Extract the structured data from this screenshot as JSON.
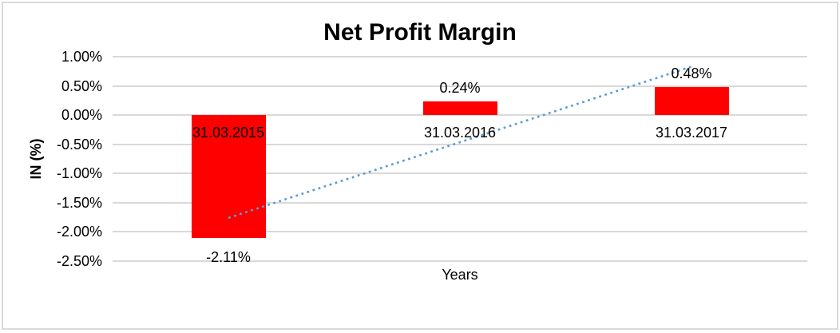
{
  "frame": {
    "background_color": "#FFFFFF",
    "border_color": "#D9D9D9"
  },
  "chart_data": {
    "type": "bar",
    "title": "Net Profit Margin",
    "xlabel": "Years",
    "ylabel": "IN (%)",
    "categories": [
      "31.03.2015",
      "31.03.2016",
      "31.03.2017"
    ],
    "values": [
      -2.11,
      0.24,
      0.48
    ],
    "data_labels": [
      "-2.11%",
      "0.24%",
      "0.48%"
    ],
    "y_ticks": [
      {
        "value": 1.0,
        "label": "1.00%"
      },
      {
        "value": 0.5,
        "label": "0.50%"
      },
      {
        "value": 0.0,
        "label": "0.00%"
      },
      {
        "value": -0.5,
        "label": "-0.50%"
      },
      {
        "value": -1.0,
        "label": "-1.00%"
      },
      {
        "value": -1.5,
        "label": "-1.50%"
      },
      {
        "value": -2.0,
        "label": "-2.00%"
      },
      {
        "value": -2.5,
        "label": "-2.50%"
      }
    ],
    "ylim": [
      -2.5,
      1.0
    ],
    "grid": true,
    "gridline_color": "#D9D9D9",
    "bar_color": "#FF0000",
    "legend": "none",
    "trendline": {
      "type": "linear",
      "style": "dotted",
      "color": "#5B9BD5",
      "x_category_index": [
        0,
        2
      ],
      "y_values": [
        -1.76,
        0.83
      ]
    }
  }
}
